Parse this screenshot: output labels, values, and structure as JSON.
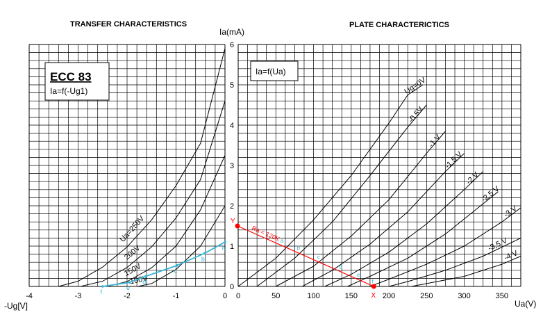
{
  "colors": {
    "grid": "#000000",
    "curve": "#000000",
    "load_line": "#ff0000",
    "transfer_load": "#37b5d6"
  },
  "chart_data": [
    {
      "type": "line",
      "title": "TRANSFER CHARACTERISTICS",
      "box_title": "ECC 83",
      "box_formula": "Ia=f(-Ug1)",
      "xlabel": "-Ug[V]",
      "ylabel": "Ia(mA)",
      "xlim": [
        -4,
        0
      ],
      "ylim": [
        0,
        6
      ],
      "x_ticks": [
        "-4",
        "-3",
        "-2",
        "-1",
        "0"
      ],
      "y_ticks": [
        "0",
        "1",
        "2",
        "3",
        "4",
        "5",
        "6"
      ],
      "grid": true,
      "series": [
        {
          "name": "Ua=250V",
          "x": [
            -3.4,
            -3.0,
            -2.5,
            -2.0,
            -1.5,
            -1.0,
            -0.5,
            0.0
          ],
          "y": [
            0.0,
            0.13,
            0.48,
            0.98,
            1.65,
            2.5,
            3.55,
            5.9
          ]
        },
        {
          "name": "200V",
          "x": [
            -2.95,
            -2.5,
            -2.0,
            -1.5,
            -1.0,
            -0.5,
            0.0
          ],
          "y": [
            0.0,
            0.13,
            0.47,
            0.98,
            1.7,
            2.65,
            4.6
          ]
        },
        {
          "name": "150V",
          "x": [
            -2.4,
            -2.0,
            -1.5,
            -1.0,
            -0.5,
            0.0
          ],
          "y": [
            0.0,
            0.12,
            0.46,
            1.0,
            1.9,
            3.25
          ]
        },
        {
          "name": "100V",
          "x": [
            -1.78,
            -1.5,
            -1.0,
            -0.5,
            0.0
          ],
          "y": [
            0.0,
            0.07,
            0.42,
            1.0,
            2.0
          ]
        }
      ],
      "load_line": {
        "x": [
          -2.5,
          -1.95,
          -1.62,
          -0.98,
          -0.42,
          0.0
        ],
        "y": [
          0.0,
          0.1,
          0.25,
          0.52,
          0.82,
          1.1
        ],
        "points": [
          "f",
          "e",
          "d",
          "c",
          "b",
          "a"
        ]
      }
    },
    {
      "type": "line",
      "title": "PLATE CHARACTERICTICS",
      "box_formula": "Ia=f(Ua)",
      "xlabel": "Ua(V)",
      "xlim": [
        0,
        375
      ],
      "ylim": [
        0,
        6
      ],
      "x_ticks": [
        "0",
        "50",
        "100",
        "150",
        "200",
        "250",
        "300",
        "350"
      ],
      "y_ticks": [
        "0",
        "1",
        "2",
        "3",
        "4",
        "5",
        "6"
      ],
      "grid": true,
      "series": [
        {
          "name": "Ug=0V",
          "x": [
            0,
            50,
            100,
            150,
            200,
            225,
            245
          ],
          "y": [
            0.0,
            0.7,
            1.65,
            2.75,
            4.05,
            4.75,
            5.0
          ]
        },
        {
          "name": "-0,5V",
          "x": [
            25,
            75,
            125,
            175,
            225,
            250
          ],
          "y": [
            0.0,
            0.7,
            1.6,
            2.75,
            3.95,
            4.5
          ]
        },
        {
          "name": "-1 V",
          "x": [
            50,
            100,
            150,
            200,
            250,
            275
          ],
          "y": [
            0.0,
            0.5,
            1.25,
            2.15,
            3.3,
            3.85
          ]
        },
        {
          "name": "-1,5 V",
          "x": [
            85,
            125,
            175,
            225,
            275,
            300
          ],
          "y": [
            0.0,
            0.4,
            1.05,
            1.85,
            2.85,
            3.3
          ]
        },
        {
          "name": "-2 V",
          "x": [
            115,
            150,
            200,
            250,
            300,
            325
          ],
          "y": [
            0.0,
            0.3,
            0.85,
            1.55,
            2.4,
            2.85
          ]
        },
        {
          "name": "-2,5 V",
          "x": [
            145,
            175,
            225,
            275,
            325,
            345
          ],
          "y": [
            0.0,
            0.25,
            0.7,
            1.3,
            2.05,
            2.35
          ]
        },
        {
          "name": "-3 V",
          "x": [
            175,
            200,
            250,
            300,
            350,
            375
          ],
          "y": [
            0.0,
            0.18,
            0.55,
            1.0,
            1.6,
            1.95
          ]
        },
        {
          "name": "-3,5 V",
          "x": [
            200,
            225,
            275,
            325,
            375
          ],
          "y": [
            0.0,
            0.12,
            0.4,
            0.75,
            1.2
          ]
        },
        {
          "name": "-4 V",
          "x": [
            230,
            250,
            300,
            350,
            375
          ],
          "y": [
            0.0,
            0.07,
            0.25,
            0.55,
            0.75
          ]
        }
      ],
      "load_line": {
        "label": "Ra = 120K",
        "x": [
          0,
          180
        ],
        "y": [
          1.5,
          0.0
        ],
        "start_label": "Y",
        "end_label": "X",
        "points": [
          "a",
          "b",
          "c",
          "d",
          "e",
          "f"
        ]
      }
    }
  ]
}
